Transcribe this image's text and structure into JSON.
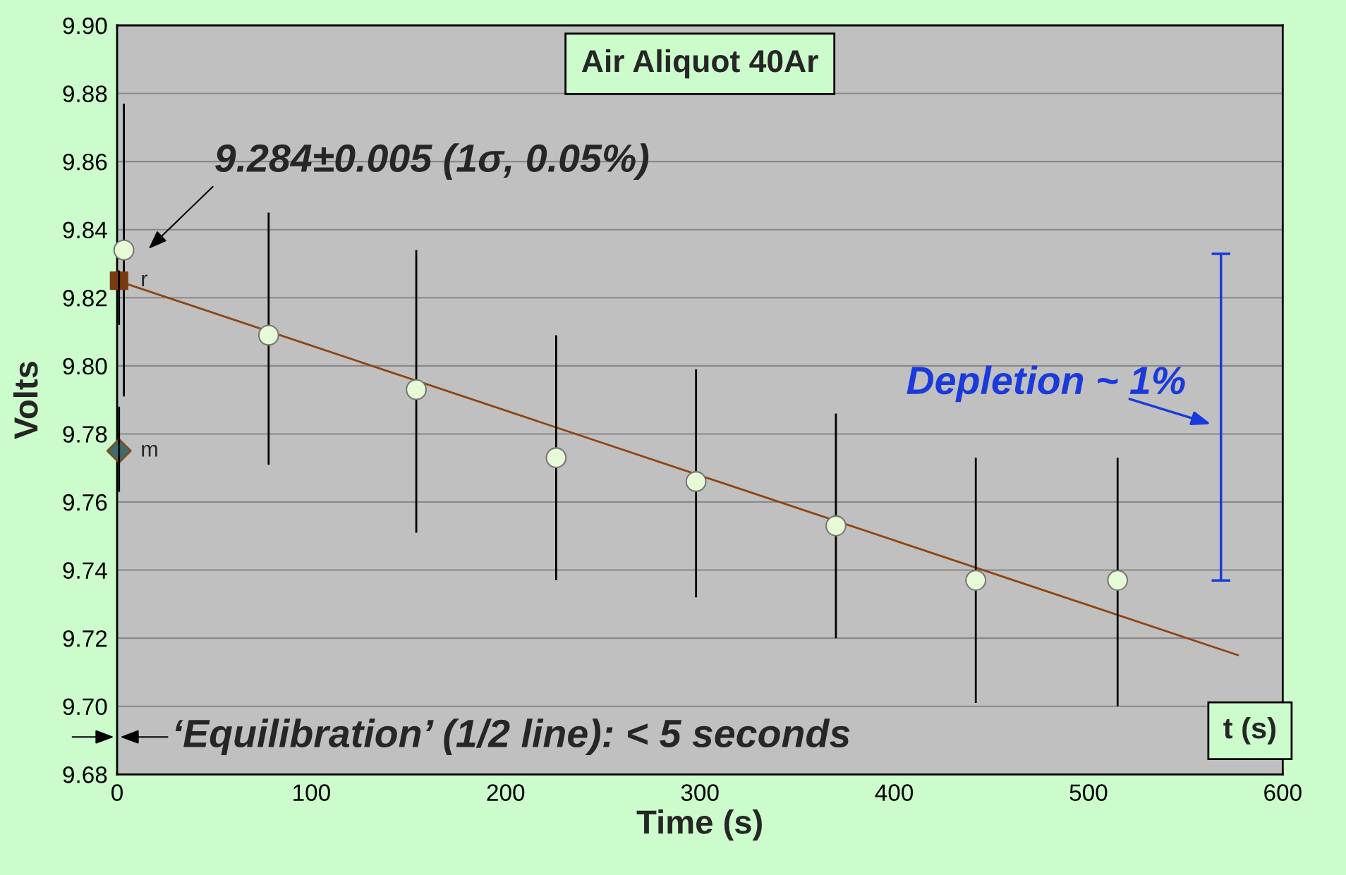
{
  "chart_data": {
    "type": "scatter",
    "title": "Air Aliquot 40Ar",
    "xlabel": "Time (s)",
    "ylabel": "Volts",
    "xlim": [
      0,
      600
    ],
    "xticks": [
      0,
      100,
      200,
      300,
      400,
      500,
      600
    ],
    "ylim": [
      9.68,
      9.9
    ],
    "yticks": [
      9.68,
      {
        "value": 9.7,
        "label": "9.70"
      },
      9.72,
      9.74,
      9.76,
      9.78,
      {
        "value": 9.8,
        "label": "9.80"
      },
      9.82,
      9.84,
      9.86,
      9.88,
      {
        "value": 9.9,
        "label": "9.90"
      }
    ],
    "grid": "y",
    "legend": false,
    "series": [
      {
        "type": "line",
        "color": "#8b4513",
        "x": [
          0,
          577
        ],
        "values": [
          9.825,
          9.715
        ],
        "marker": "none",
        "line_style": "solid"
      },
      {
        "color": "#e6fad6",
        "marker": "circle",
        "x": [
          3.5,
          78,
          154,
          226,
          298,
          370,
          442,
          515
        ],
        "values": [
          9.834,
          9.809,
          9.793,
          9.773,
          9.766,
          9.753,
          9.737,
          9.737
        ],
        "errors": [
          [
            9.791,
            9.877
          ],
          [
            9.771,
            9.845
          ],
          [
            9.751,
            9.834
          ],
          [
            9.737,
            9.809
          ],
          [
            9.732,
            9.799
          ],
          [
            9.72,
            9.786
          ],
          [
            9.701,
            9.773
          ],
          [
            9.7,
            9.773
          ]
        ]
      },
      {
        "name": "r",
        "color": "#7a3a10",
        "marker": "square",
        "x": [
          1
        ],
        "values": [
          9.825
        ],
        "errors": [
          [
            9.812,
            9.828
          ]
        ]
      },
      {
        "name": "m",
        "color": "#3e6b6b",
        "marker": "diamond",
        "x": [
          1
        ],
        "values": [
          9.775
        ],
        "errors": [
          [
            9.763,
            9.788
          ]
        ]
      }
    ],
    "annotations": [
      {
        "text": "9.284±0.005 (1σ, 0.05%)",
        "x": 3.5,
        "y": 9.834
      },
      "‘Equilibration’ (1/2 line): < 5 seconds",
      "t (s)",
      "Depletion ~ 1%"
    ]
  }
}
